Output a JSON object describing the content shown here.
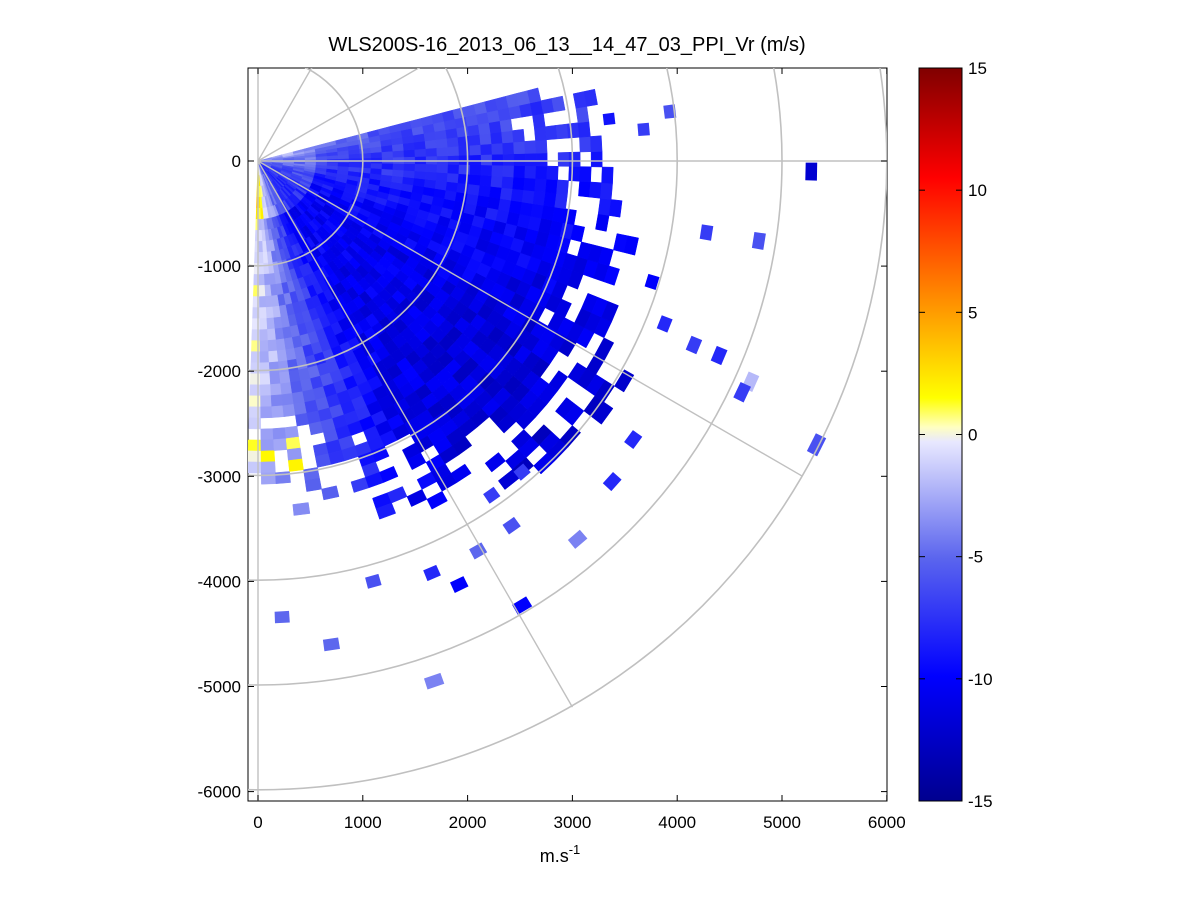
{
  "chart_data": {
    "type": "heatmap",
    "subtype": "polar-ppi-scan",
    "title": "WLS200S-16_2013_06_13__14_47_03_PPI_Vr (m/s)",
    "xlabel_base": "m.s",
    "xlabel_sup": "-1",
    "ylabel": "",
    "xlim": [
      -100,
      6000
    ],
    "ylim": [
      -6100,
      900
    ],
    "x_ticks": [
      "0",
      "1000",
      "2000",
      "3000",
      "4000",
      "5000",
      "6000"
    ],
    "x_tick_values": [
      0,
      1000,
      2000,
      3000,
      4000,
      5000,
      6000
    ],
    "y_ticks": [
      "0",
      "-1000",
      "-2000",
      "-3000",
      "-4000",
      "-5000",
      "-6000"
    ],
    "y_tick_values": [
      0,
      -1000,
      -2000,
      -3000,
      -4000,
      -5000,
      -6000
    ],
    "polar_grid": {
      "ring_radii": [
        1000,
        2000,
        3000,
        4000,
        5000,
        6000
      ],
      "spoke_angles_deg": [
        0,
        -30,
        -60,
        30,
        60
      ],
      "color": "#c0c0c0"
    },
    "colorbar": {
      "range": [
        -15,
        15
      ],
      "ticks": [
        "15",
        "10",
        "5",
        "0",
        "-5",
        "-10",
        "-15"
      ],
      "tick_values": [
        15,
        10,
        5,
        0,
        -5,
        -10,
        -15
      ],
      "colormap": "blue-white-yellow-red"
    },
    "scan": {
      "azimuth_range_deg": [
        -92,
        12
      ],
      "max_range_m": 4200,
      "velocity_range": [
        -12,
        2
      ],
      "description_values": "radial velocity, mostly negative (blue), lighter near south edge with a few slightly positive (yellow) cells"
    },
    "sparse_cells": [
      {
        "x": 3350,
        "y": 400,
        "v": -9
      },
      {
        "x": 3680,
        "y": 300,
        "v": -7
      },
      {
        "x": 3930,
        "y": 470,
        "v": -6
      },
      {
        "x": 5280,
        "y": -100,
        "v": -12
      },
      {
        "x": 4280,
        "y": -680,
        "v": -7
      },
      {
        "x": 4780,
        "y": -760,
        "v": -6
      },
      {
        "x": 3760,
        "y": -1150,
        "v": -10
      },
      {
        "x": 3880,
        "y": -1550,
        "v": -8
      },
      {
        "x": 4160,
        "y": -1750,
        "v": -7
      },
      {
        "x": 4400,
        "y": -1850,
        "v": -8
      },
      {
        "x": 4700,
        "y": -2100,
        "v": -2
      },
      {
        "x": 4620,
        "y": -2200,
        "v": -7
      },
      {
        "x": 5330,
        "y": -2700,
        "v": -6
      },
      {
        "x": 3580,
        "y": -2650,
        "v": -8
      },
      {
        "x": 3380,
        "y": -3050,
        "v": -8
      },
      {
        "x": 3050,
        "y": -3600,
        "v": -4
      },
      {
        "x": 2520,
        "y": -4230,
        "v": -10
      },
      {
        "x": 2420,
        "y": -3470,
        "v": -6
      },
      {
        "x": 1920,
        "y": -4030,
        "v": -10
      },
      {
        "x": 1660,
        "y": -3920,
        "v": -8
      },
      {
        "x": 1100,
        "y": -4000,
        "v": -6
      },
      {
        "x": 700,
        "y": -4600,
        "v": -5
      },
      {
        "x": 1680,
        "y": -4950,
        "v": -4
      },
      {
        "x": 230,
        "y": -4340,
        "v": -5
      },
      {
        "x": 2100,
        "y": -3710,
        "v": -5
      },
      {
        "x": 2230,
        "y": -3180,
        "v": -7
      },
      {
        "x": 2520,
        "y": -2960,
        "v": -7
      }
    ]
  }
}
